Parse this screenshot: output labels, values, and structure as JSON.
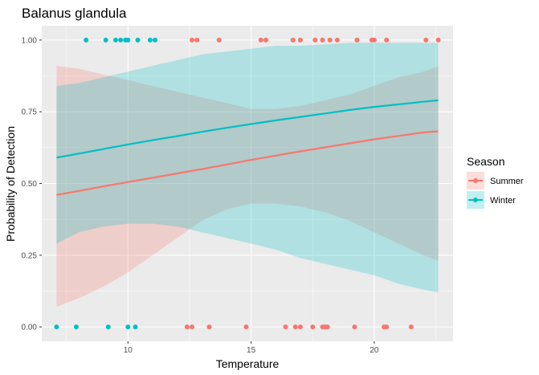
{
  "chart_data": {
    "type": "scatter",
    "title": "Balanus glandula",
    "xlabel": "Temperature",
    "ylabel": "Probability of Detection",
    "xlim": [
      6.5,
      23.2
    ],
    "ylim": [
      -0.05,
      1.05
    ],
    "x_ticks": [
      10,
      15,
      20
    ],
    "x_tick_labels": [
      "10",
      "15",
      "20"
    ],
    "y_ticks": [
      0,
      0.25,
      0.5,
      0.75,
      1
    ],
    "y_tick_labels": [
      "0.00",
      "0.25",
      "0.50",
      "0.75",
      "1.00"
    ],
    "grid": true,
    "legend": {
      "title": "Season",
      "position": "right"
    },
    "series": [
      {
        "name": "Summer",
        "color": "#F8766D",
        "points": {
          "x": [
            12.6,
            12.8,
            13.7,
            15.4,
            15.6,
            16.7,
            17.0,
            17.6,
            17.9,
            18.2,
            18.5,
            19.3,
            19.9,
            20.0,
            20.5,
            22.1,
            22.6,
            12.4,
            12.6,
            13.3,
            14.8,
            16.4,
            16.8,
            17.0,
            17.5,
            17.9,
            18.0,
            18.1,
            19.2,
            20.4,
            20.5,
            21.5
          ],
          "y": [
            1,
            1,
            1,
            1,
            1,
            1,
            1,
            1,
            1,
            1,
            1,
            1,
            1,
            1,
            1,
            1,
            1,
            0,
            0,
            0,
            0,
            0,
            0,
            0,
            0,
            0,
            0,
            0,
            0,
            0,
            0,
            0
          ]
        },
        "fit": {
          "x": [
            7.1,
            8,
            9,
            10,
            11,
            12,
            13,
            14,
            15,
            16,
            17,
            18,
            19,
            20,
            21,
            22,
            22.6
          ],
          "y": [
            0.46,
            0.474,
            0.49,
            0.505,
            0.52,
            0.535,
            0.55,
            0.566,
            0.582,
            0.597,
            0.612,
            0.626,
            0.64,
            0.654,
            0.666,
            0.678,
            0.682
          ],
          "lower": [
            0.07,
            0.1,
            0.14,
            0.19,
            0.25,
            0.31,
            0.37,
            0.41,
            0.43,
            0.43,
            0.42,
            0.4,
            0.37,
            0.33,
            0.29,
            0.25,
            0.23
          ],
          "upper": [
            0.91,
            0.9,
            0.88,
            0.86,
            0.84,
            0.82,
            0.8,
            0.78,
            0.76,
            0.76,
            0.77,
            0.79,
            0.81,
            0.84,
            0.87,
            0.89,
            0.91
          ]
        }
      },
      {
        "name": "Winter",
        "color": "#00BFC4",
        "points": {
          "x": [
            8.3,
            9.1,
            9.5,
            9.7,
            9.9,
            10.0,
            10.4,
            10.9,
            11.1,
            7.1,
            7.9,
            9.2,
            10.0,
            10.3
          ],
          "y": [
            1,
            1,
            1,
            1,
            1,
            1,
            1,
            1,
            1,
            0,
            0,
            0,
            0,
            0
          ]
        },
        "fit": {
          "x": [
            7.1,
            8,
            9,
            10,
            11,
            12,
            13,
            14,
            15,
            16,
            17,
            18,
            19,
            20,
            21,
            22,
            22.6
          ],
          "y": [
            0.59,
            0.604,
            0.62,
            0.636,
            0.651,
            0.665,
            0.68,
            0.694,
            0.707,
            0.72,
            0.732,
            0.744,
            0.756,
            0.767,
            0.776,
            0.785,
            0.79
          ],
          "lower": [
            0.29,
            0.33,
            0.35,
            0.36,
            0.36,
            0.35,
            0.33,
            0.31,
            0.29,
            0.27,
            0.24,
            0.22,
            0.2,
            0.18,
            0.15,
            0.13,
            0.12
          ],
          "upper": [
            0.84,
            0.85,
            0.87,
            0.89,
            0.91,
            0.93,
            0.95,
            0.96,
            0.97,
            0.98,
            0.98,
            0.985,
            0.99,
            0.99,
            0.99,
            0.99,
            0.99
          ]
        }
      }
    ]
  }
}
